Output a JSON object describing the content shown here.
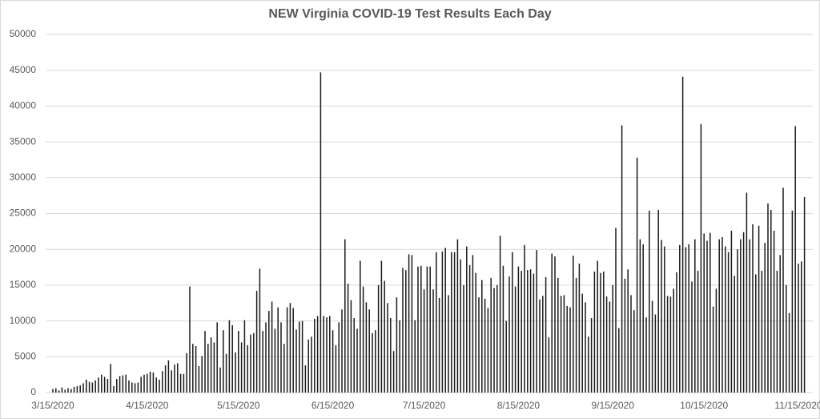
{
  "chart_data": {
    "type": "bar",
    "title": "NEW Virginia COVID-19 Test Results Each Day",
    "categories": [
      "3/15/2020",
      null,
      null,
      null,
      null,
      null,
      null,
      null,
      null,
      null,
      null,
      null,
      null,
      null,
      null,
      null,
      null,
      null,
      null,
      null,
      null,
      null,
      null,
      null,
      null,
      null,
      null,
      null,
      null,
      null,
      null,
      "4/15/2020",
      null,
      null,
      null,
      null,
      null,
      null,
      null,
      null,
      null,
      null,
      null,
      null,
      null,
      null,
      null,
      null,
      null,
      null,
      null,
      null,
      null,
      null,
      null,
      null,
      null,
      null,
      null,
      null,
      null,
      "5/15/2020",
      null,
      null,
      null,
      null,
      null,
      null,
      null,
      null,
      null,
      null,
      null,
      null,
      null,
      null,
      null,
      null,
      null,
      null,
      null,
      null,
      null,
      null,
      null,
      null,
      null,
      null,
      null,
      null,
      null,
      null,
      "6/15/2020",
      null,
      null,
      null,
      null,
      null,
      null,
      null,
      null,
      null,
      null,
      null,
      null,
      null,
      null,
      null,
      null,
      null,
      null,
      null,
      null,
      null,
      null,
      null,
      null,
      null,
      null,
      null,
      null,
      null,
      "7/15/2020",
      null,
      null,
      null,
      null,
      null,
      null,
      null,
      null,
      null,
      null,
      null,
      null,
      null,
      null,
      null,
      null,
      null,
      null,
      null,
      null,
      null,
      null,
      null,
      null,
      null,
      null,
      null,
      null,
      null,
      null,
      "8/15/2020",
      null,
      null,
      null,
      null,
      null,
      null,
      null,
      null,
      null,
      null,
      null,
      null,
      null,
      null,
      null,
      null,
      null,
      null,
      null,
      null,
      null,
      null,
      null,
      null,
      null,
      null,
      null,
      null,
      null,
      null,
      "9/15/2020",
      null,
      null,
      null,
      null,
      null,
      null,
      null,
      null,
      null,
      null,
      null,
      null,
      null,
      null,
      null,
      null,
      null,
      null,
      null,
      null,
      null,
      null,
      null,
      null,
      null,
      null,
      null,
      null,
      null,
      "10/15/2020",
      null,
      null,
      null,
      null,
      null,
      null,
      null,
      null,
      null,
      null,
      null,
      null,
      null,
      null,
      null,
      null,
      null,
      null,
      null,
      null,
      null,
      null,
      null,
      null,
      null,
      null,
      null,
      null,
      null,
      null,
      "11/15/2020",
      null,
      null
    ],
    "values": [
      500,
      600,
      300,
      700,
      400,
      600,
      500,
      800,
      900,
      1000,
      1300,
      1800,
      1500,
      1400,
      1700,
      2100,
      2500,
      2200,
      1900,
      4000,
      900,
      1900,
      2300,
      2400,
      2500,
      1700,
      1400,
      1300,
      1400,
      2200,
      2500,
      2600,
      2900,
      2800,
      2100,
      1800,
      3000,
      3800,
      4500,
      3100,
      3900,
      4100,
      2600,
      2600,
      5500,
      14800,
      6800,
      6500,
      3700,
      5100,
      8600,
      6800,
      7700,
      7000,
      9800,
      3500,
      8700,
      5400,
      10100,
      9400,
      5600,
      8600,
      7000,
      10100,
      6600,
      8100,
      8300,
      14200,
      17300,
      8600,
      9800,
      11400,
      12700,
      8900,
      11900,
      9800,
      6800,
      11900,
      12500,
      11800,
      8800,
      9900,
      10000,
      3800,
      7400,
      7800,
      10300,
      10700,
      44700,
      10700,
      10500,
      10700,
      8700,
      6600,
      9800,
      11600,
      21400,
      15200,
      12900,
      10400,
      8900,
      18400,
      14800,
      12600,
      11600,
      8300,
      8700,
      15000,
      18400,
      15600,
      12500,
      10400,
      5800,
      13300,
      10100,
      17400,
      17100,
      19300,
      19200,
      10100,
      17600,
      17700,
      14400,
      17600,
      17600,
      14400,
      19600,
      13200,
      19700,
      20200,
      13600,
      19600,
      19600,
      21400,
      18600,
      15000,
      20400,
      17800,
      19200,
      16700,
      13300,
      15700,
      13100,
      11800,
      16000,
      14600,
      15000,
      21900,
      17700,
      10000,
      16200,
      19600,
      14800,
      17600,
      17000,
      20600,
      17100,
      17200,
      16600,
      19900,
      13000,
      13500,
      16100,
      7700,
      19400,
      19000,
      16000,
      13500,
      13600,
      12100,
      11900,
      19100,
      16000,
      18000,
      13800,
      12600,
      7800,
      10400,
      16900,
      18400,
      16700,
      16900,
      13400,
      12700,
      15000,
      23000,
      9000,
      37300,
      15900,
      17200,
      13600,
      11500,
      32800,
      21400,
      20700,
      10500,
      25400,
      12800,
      10900,
      25500,
      21300,
      20400,
      13500,
      13400,
      14500,
      16800,
      20600,
      44100,
      20300,
      20700,
      15500,
      21400,
      17000,
      37500,
      22200,
      21200,
      22300,
      12000,
      14500,
      21400,
      21700,
      20400,
      19600,
      22600,
      16300,
      20000,
      21400,
      22400,
      27900,
      21400,
      23500,
      16500,
      23300,
      17000,
      20900,
      26400,
      25500,
      22600,
      17000,
      19200,
      28600,
      15000,
      11100,
      25400,
      37200,
      18000,
      18300,
      27300
    ],
    "color": "#1a1a1a",
    "ylim": [
      0,
      50000
    ],
    "yticks": [
      0,
      5000,
      10000,
      15000,
      20000,
      25000,
      30000,
      35000,
      40000,
      45000,
      50000
    ],
    "grid": true
  }
}
